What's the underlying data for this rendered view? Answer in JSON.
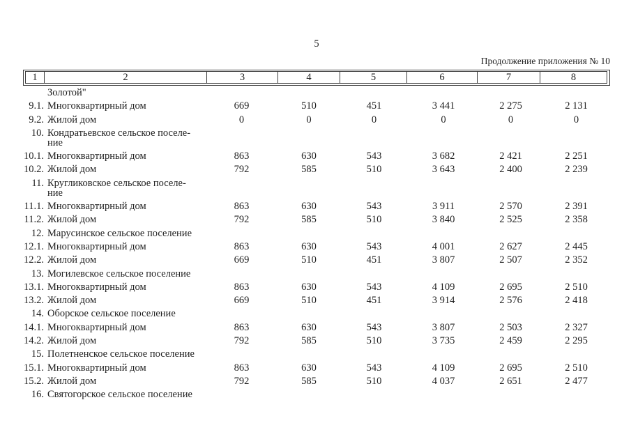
{
  "page": {
    "number": "5",
    "caption": "Продолжение приложения № 10"
  },
  "colors": {
    "text": "#1f1f1f",
    "border": "#3a3a3a",
    "background": "#ffffff"
  },
  "table": {
    "headers": [
      "1",
      "2",
      "3",
      "4",
      "5",
      "6",
      "7",
      "8"
    ],
    "rows": [
      {
        "num": "",
        "name": [
          "Золотой\""
        ],
        "values": [
          "",
          "",
          "",
          "",
          "",
          ""
        ]
      },
      {
        "num": "9.1.",
        "name": [
          "Многоквартирный дом"
        ],
        "values": [
          "669",
          "510",
          "451",
          "3 441",
          "2 275",
          "2 131"
        ]
      },
      {
        "num": "9.2.",
        "name": [
          "Жилой дом"
        ],
        "values": [
          "0",
          "0",
          "0",
          "0",
          "0",
          "0"
        ]
      },
      {
        "num": "10.",
        "name": [
          "Кондратьевское сельское поселе-",
          "ние"
        ],
        "values": [
          "",
          "",
          "",
          "",
          "",
          ""
        ]
      },
      {
        "num": "10.1.",
        "name": [
          "Многоквартирный дом"
        ],
        "values": [
          "863",
          "630",
          "543",
          "3 682",
          "2 421",
          "2 251"
        ]
      },
      {
        "num": "10.2.",
        "name": [
          "Жилой дом"
        ],
        "values": [
          "792",
          "585",
          "510",
          "3 643",
          "2 400",
          "2 239"
        ]
      },
      {
        "num": "11.",
        "name": [
          "Кругликовское сельское поселе-",
          "ние"
        ],
        "values": [
          "",
          "",
          "",
          "",
          "",
          ""
        ]
      },
      {
        "num": "11.1.",
        "name": [
          "Многоквартирный дом"
        ],
        "values": [
          "863",
          "630",
          "543",
          "3 911",
          "2 570",
          "2 391"
        ]
      },
      {
        "num": "11.2.",
        "name": [
          "Жилой дом"
        ],
        "values": [
          "792",
          "585",
          "510",
          "3 840",
          "2 525",
          "2 358"
        ]
      },
      {
        "num": "12.",
        "name": [
          "Марусинское сельское поселение"
        ],
        "values": [
          "",
          "",
          "",
          "",
          "",
          ""
        ]
      },
      {
        "num": "12.1.",
        "name": [
          "Многоквартирный дом"
        ],
        "values": [
          "863",
          "630",
          "543",
          "4 001",
          "2 627",
          "2 445"
        ]
      },
      {
        "num": "12.2.",
        "name": [
          "Жилой дом"
        ],
        "values": [
          "669",
          "510",
          "451",
          "3 807",
          "2 507",
          "2 352"
        ]
      },
      {
        "num": "13.",
        "name": [
          "Могилевское сельское поселение"
        ],
        "values": [
          "",
          "",
          "",
          "",
          "",
          ""
        ]
      },
      {
        "num": "13.1.",
        "name": [
          "Многоквартирный дом"
        ],
        "values": [
          "863",
          "630",
          "543",
          "4 109",
          "2 695",
          "2 510"
        ]
      },
      {
        "num": "13.2.",
        "name": [
          "Жилой дом"
        ],
        "values": [
          "669",
          "510",
          "451",
          "3 914",
          "2 576",
          "2 418"
        ]
      },
      {
        "num": "14.",
        "name": [
          "Оборское сельское поселение"
        ],
        "values": [
          "",
          "",
          "",
          "",
          "",
          ""
        ]
      },
      {
        "num": "14.1.",
        "name": [
          "Многоквартирный дом"
        ],
        "values": [
          "863",
          "630",
          "543",
          "3 807",
          "2 503",
          "2 327"
        ]
      },
      {
        "num": "14.2.",
        "name": [
          "Жилой дом"
        ],
        "values": [
          "792",
          "585",
          "510",
          "3 735",
          "2 459",
          "2 295"
        ]
      },
      {
        "num": "15.",
        "name": [
          "Полетненское сельское поселение"
        ],
        "values": [
          "",
          "",
          "",
          "",
          "",
          ""
        ]
      },
      {
        "num": "15.1.",
        "name": [
          "Многоквартирный дом"
        ],
        "values": [
          "863",
          "630",
          "543",
          "4 109",
          "2 695",
          "2 510"
        ]
      },
      {
        "num": "15.2.",
        "name": [
          "Жилой дом"
        ],
        "values": [
          "792",
          "585",
          "510",
          "4 037",
          "2 651",
          "2 477"
        ]
      },
      {
        "num": "16.",
        "name": [
          "Святогорское сельское поселение"
        ],
        "values": [
          "",
          "",
          "",
          "",
          "",
          ""
        ]
      }
    ]
  }
}
